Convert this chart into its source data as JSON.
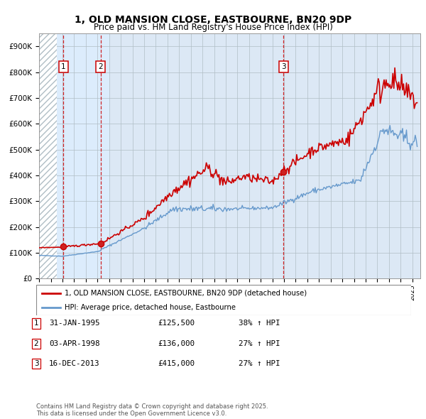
{
  "title": "1, OLD MANSION CLOSE, EASTBOURNE, BN20 9DP",
  "subtitle": "Price paid vs. HM Land Registry's House Price Index (HPI)",
  "ylim": [
    0,
    950000
  ],
  "yticks": [
    0,
    100000,
    200000,
    300000,
    400000,
    500000,
    600000,
    700000,
    800000,
    900000
  ],
  "ytick_labels": [
    "£0",
    "£100K",
    "£200K",
    "£300K",
    "£400K",
    "£500K",
    "£600K",
    "£700K",
    "£800K",
    "£900K"
  ],
  "xlim_start": 1993.0,
  "xlim_end": 2025.7,
  "plot_bg_color": "#dce8f5",
  "hatch_end": 1994.5,
  "grid_color": "#b0bec5",
  "red_line_color": "#cc0000",
  "blue_line_color": "#6699cc",
  "sale_dates": [
    1995.08,
    1998.26,
    2013.96
  ],
  "sale_prices": [
    125500,
    136000,
    415000
  ],
  "sale_labels": [
    "1",
    "2",
    "3"
  ],
  "legend_label_red": "1, OLD MANSION CLOSE, EASTBOURNE, BN20 9DP (detached house)",
  "legend_label_blue": "HPI: Average price, detached house, Eastbourne",
  "table_rows": [
    [
      "1",
      "31-JAN-1995",
      "£125,500",
      "38% ↑ HPI"
    ],
    [
      "2",
      "03-APR-1998",
      "£136,000",
      "27% ↑ HPI"
    ],
    [
      "3",
      "16-DEC-2013",
      "£415,000",
      "27% ↑ HPI"
    ]
  ],
  "footer": "Contains HM Land Registry data © Crown copyright and database right 2025.\nThis data is licensed under the Open Government Licence v3.0."
}
